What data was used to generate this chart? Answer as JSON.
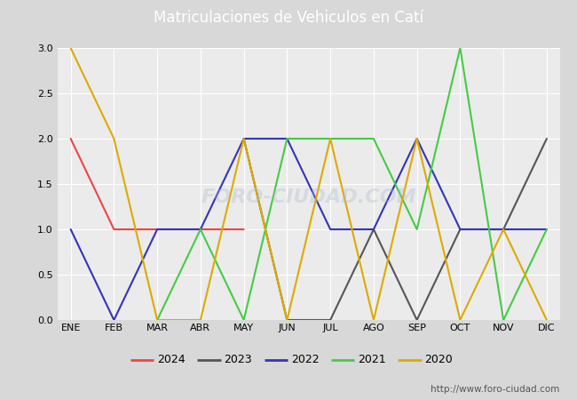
{
  "title": "Matriculaciones de Vehiculos en Catí",
  "months": [
    "ENE",
    "FEB",
    "MAR",
    "ABR",
    "MAY",
    "JUN",
    "JUL",
    "AGO",
    "SEP",
    "OCT",
    "NOV",
    "DIC"
  ],
  "series": {
    "2024": {
      "color": "#ee4444",
      "data": [
        2,
        1,
        1,
        1,
        1,
        null,
        null,
        null,
        null,
        null,
        null,
        null
      ]
    },
    "2023": {
      "color": "#555555",
      "data": [
        null,
        null,
        null,
        null,
        2,
        0,
        0,
        1,
        0,
        1,
        1,
        2
      ]
    },
    "2022": {
      "color": "#3333bb",
      "data": [
        1,
        0,
        1,
        1,
        2,
        2,
        1,
        1,
        2,
        1,
        1,
        1
      ]
    },
    "2021": {
      "color": "#44cc44",
      "data": [
        null,
        null,
        0,
        1,
        0,
        2,
        2,
        2,
        1,
        3,
        0,
        1
      ]
    },
    "2020": {
      "color": "#ddaa00",
      "data": [
        3,
        2,
        0,
        0,
        2,
        0,
        2,
        0,
        2,
        0,
        1,
        0
      ]
    }
  },
  "ylim": [
    0,
    3.0
  ],
  "yticks": [
    0.0,
    0.5,
    1.0,
    1.5,
    2.0,
    2.5,
    3.0
  ],
  "background_color": "#d8d8d8",
  "plot_background": "#ebebeb",
  "title_background": "#4488bb",
  "title_color": "white",
  "watermark": "http://www.foro-ciudad.com",
  "legend_years": [
    "2024",
    "2023",
    "2022",
    "2021",
    "2020"
  ],
  "linewidth": 1.5
}
